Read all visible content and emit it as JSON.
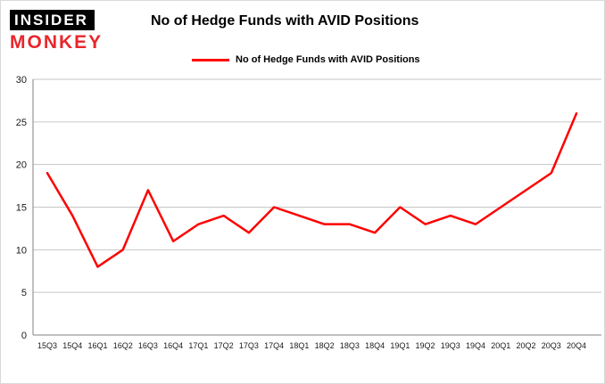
{
  "header": {
    "logo_line1": "INSIDER",
    "logo_line2": "MONKEY",
    "title": "No of Hedge Funds with AVID Positions"
  },
  "legend": {
    "label": "No of Hedge Funds with AVID Positions",
    "color": "#ff0000"
  },
  "chart_data": {
    "type": "line",
    "title": "No of Hedge Funds with AVID Positions",
    "categories": [
      "15Q3",
      "15Q4",
      "16Q1",
      "16Q2",
      "16Q3",
      "16Q4",
      "17Q1",
      "17Q2",
      "17Q3",
      "17Q4",
      "18Q1",
      "18Q2",
      "18Q3",
      "18Q4",
      "19Q1",
      "19Q2",
      "19Q3",
      "19Q4",
      "20Q1",
      "20Q2",
      "20Q3",
      "20Q4"
    ],
    "series": [
      {
        "name": "No of Hedge Funds with AVID Positions",
        "color": "#ff0000",
        "values": [
          19,
          14,
          8,
          10,
          17,
          11,
          13,
          14,
          12,
          15,
          14,
          13,
          13,
          12,
          15,
          13,
          14,
          13,
          15,
          17,
          19,
          26
        ]
      }
    ],
    "xlabel": "",
    "ylabel": "",
    "ylim": [
      0,
      30
    ],
    "yticks": [
      0,
      5,
      10,
      15,
      20,
      25,
      30
    ],
    "grid": true,
    "legend_position": "top",
    "colors": {
      "gridline": "#c6c6c6",
      "axis": "#808080",
      "background": "#ffffff"
    }
  }
}
